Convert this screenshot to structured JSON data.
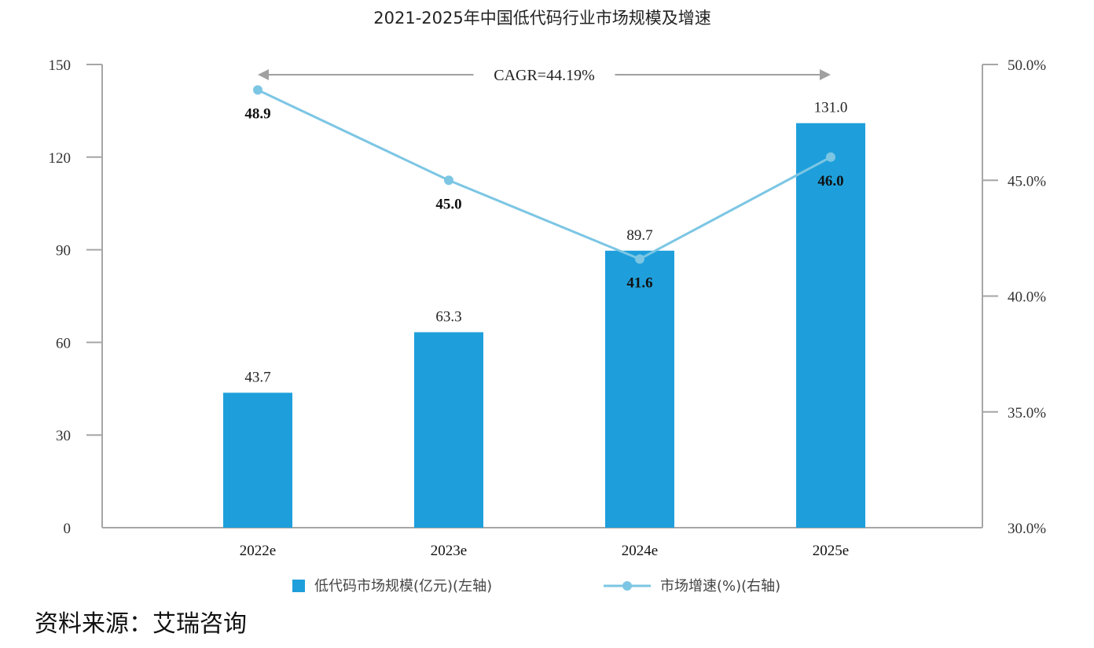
{
  "chart_data": {
    "type": "bar",
    "title": "2021-2025年中国低代码行业市场规模及增速",
    "categories": [
      "2022e",
      "2023e",
      "2024e",
      "2025e"
    ],
    "series": [
      {
        "name": "低代码市场规模(亿元)(左轴)",
        "type": "bar",
        "axis": "left",
        "values": [
          43.7,
          63.3,
          89.7,
          131.0
        ],
        "labels": [
          "43.7",
          "63.3",
          "89.7",
          "131.0"
        ],
        "color": "#1e9fdb"
      },
      {
        "name": "市场增速(%)(右轴)",
        "type": "line",
        "axis": "right",
        "values": [
          48.9,
          45.0,
          41.6,
          46.0
        ],
        "labels": [
          "48.9",
          "45.0",
          "41.6",
          "46.0"
        ],
        "color": "#7cc6e4"
      }
    ],
    "left_axis": {
      "ylim": [
        0,
        150
      ],
      "ticks": [
        0,
        30,
        60,
        90,
        120,
        150
      ],
      "tick_labels": [
        "0",
        "30",
        "60",
        "90",
        "120",
        "150"
      ]
    },
    "right_axis": {
      "ylim": [
        30,
        50
      ],
      "ticks": [
        30,
        35,
        40,
        45,
        50
      ],
      "tick_labels": [
        "30.0%",
        "35.0%",
        "40.0%",
        "45.0%",
        "50.0%"
      ]
    },
    "annotation": {
      "text": "CAGR=44.19%",
      "from_category": "2022e",
      "to_category": "2025e"
    },
    "xlabel": "",
    "ylabel": "",
    "grid": false,
    "legend_position": "bottom-center"
  },
  "source_text": "资料来源：艾瑞咨询",
  "colors": {
    "bar": "#1e9fdb",
    "line": "#7cc6e4",
    "axis": "#a6a6a6",
    "arrow": "#a0a0a0"
  }
}
